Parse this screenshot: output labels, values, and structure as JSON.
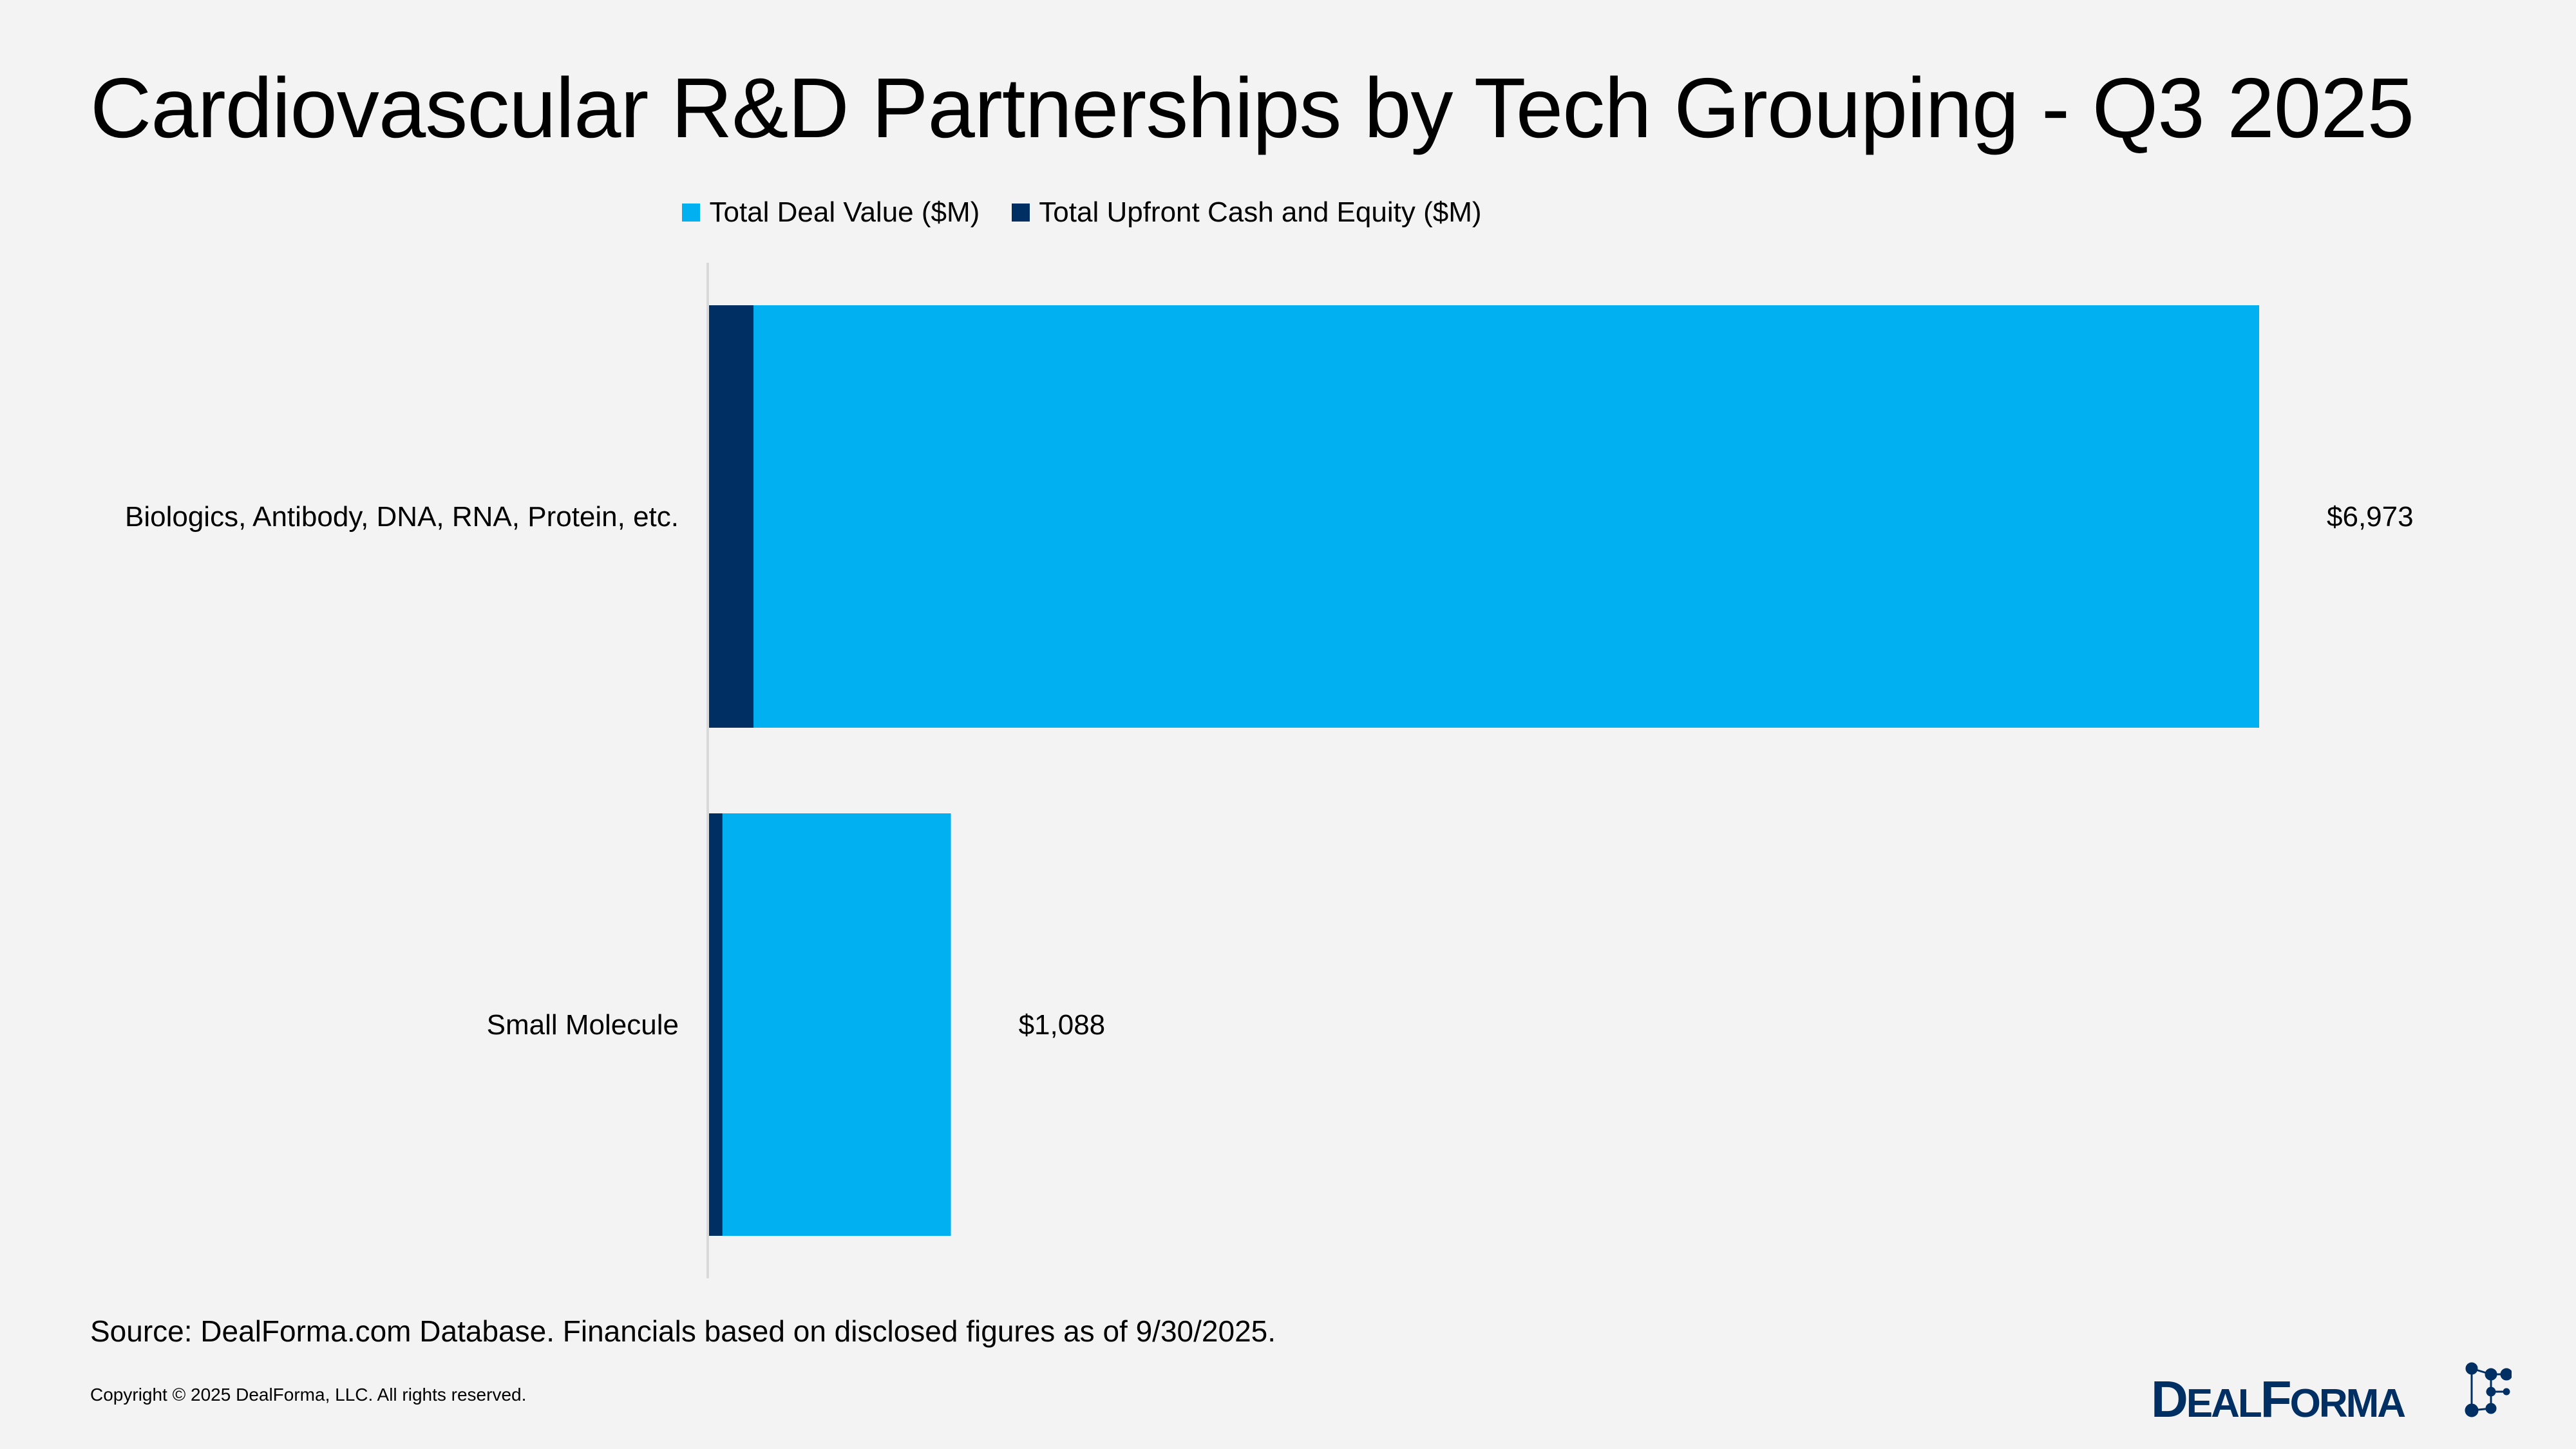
{
  "chart_data": {
    "type": "bar",
    "orientation": "horizontal",
    "title": "Cardiovascular R&D Partnerships by Tech Grouping - Q3 2025",
    "categories": [
      "Biologics, Antibody, DNA, RNA, Protein, etc.",
      "Small Molecule"
    ],
    "series": [
      {
        "name": "Total Deal Value ($M)",
        "values": [
          6973,
          1088
        ],
        "color": "#00b0f0"
      },
      {
        "name": "Total Upfront Cash and Equity ($M)",
        "values": [
          200,
          60
        ],
        "color": "#002f63"
      }
    ],
    "data_labels": [
      "$6,973",
      "$1,088"
    ],
    "xlim": [
      0,
      6973
    ],
    "grid": false,
    "legend_position": "top",
    "bars_overlap": true
  },
  "footer": {
    "source": "Source: DealForma.com Database. Financials based on disclosed figures as of 9/30/2025.",
    "copyright": "Copyright © 2025 DealForma, LLC. All rights reserved."
  },
  "logo": {
    "text": "DealForma",
    "color": "#002f63"
  },
  "background": "#f3f3f3"
}
